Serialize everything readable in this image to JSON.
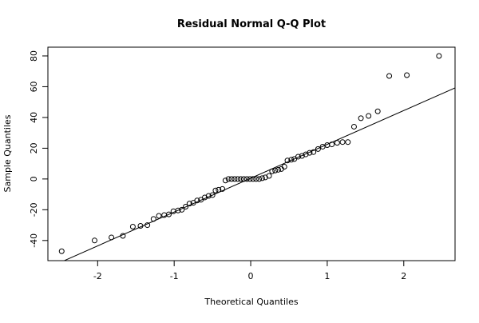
{
  "chart_data": {
    "type": "scatter",
    "title": "Residual Normal Q-Q Plot",
    "x_label": "Theoretical Quantiles",
    "y_label": "Sample Quantiles",
    "x": [
      -2.47,
      -2.04,
      -1.82,
      -1.67,
      -1.54,
      -1.44,
      -1.35,
      -1.27,
      -1.2,
      -1.13,
      -1.07,
      -1.01,
      -0.95,
      -0.9,
      -0.85,
      -0.8,
      -0.75,
      -0.7,
      -0.65,
      -0.6,
      -0.55,
      -0.5,
      -0.46,
      -0.42,
      -0.37,
      -0.33,
      -0.29,
      -0.25,
      -0.21,
      -0.17,
      -0.13,
      -0.09,
      -0.05,
      -0.01,
      0.03,
      0.07,
      0.11,
      0.15,
      0.19,
      0.24,
      0.28,
      0.32,
      0.36,
      0.4,
      0.44,
      0.48,
      0.53,
      0.57,
      0.62,
      0.67,
      0.72,
      0.77,
      0.82,
      0.88,
      0.94,
      1.0,
      1.06,
      1.13,
      1.2,
      1.27,
      1.35,
      1.44,
      1.54,
      1.66,
      1.81,
      2.04,
      2.46
    ],
    "values": [
      -47,
      -40,
      -38,
      -37,
      -31,
      -30.5,
      -30,
      -26,
      -24,
      -23.5,
      -23,
      -21,
      -20.5,
      -20,
      -18,
      -16,
      -15.5,
      -14,
      -13.5,
      -12,
      -11,
      -10.5,
      -7.5,
      -7,
      -6.5,
      -1,
      0,
      0,
      0,
      0,
      0,
      0,
      0,
      0,
      0,
      0,
      0,
      0.5,
      1,
      2,
      5,
      5.5,
      6,
      6.5,
      8,
      12,
      12.5,
      13,
      14.5,
      15,
      16,
      17,
      17.5,
      19.5,
      21,
      22,
      22.5,
      23.5,
      24,
      24,
      34,
      39.5,
      41,
      44,
      67,
      67.5,
      80
    ],
    "line": {
      "intercept": 0.5,
      "slope": 22
    },
    "xlim": [
      -2.65,
      2.67
    ],
    "ylim": [
      -53.1,
      85.7
    ],
    "xticks": [
      -2,
      -1,
      0,
      1,
      2
    ],
    "yticks": [
      -40,
      -20,
      0,
      20,
      40,
      60,
      80
    ]
  }
}
